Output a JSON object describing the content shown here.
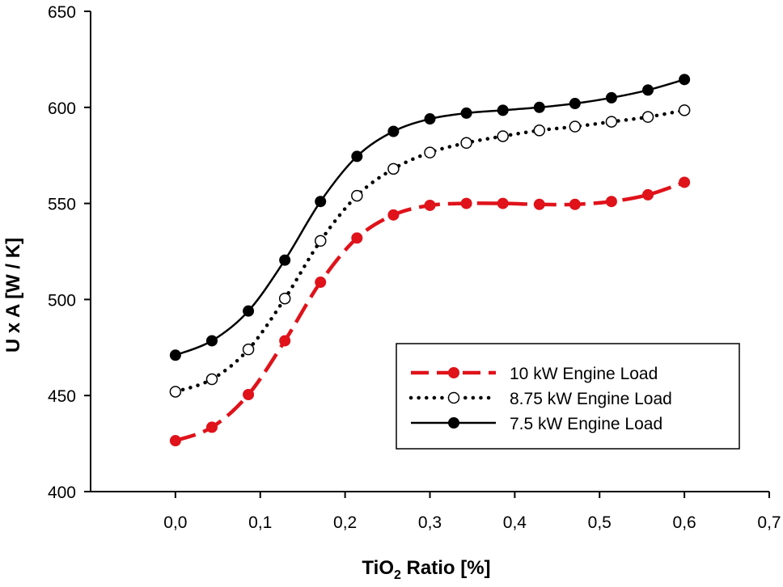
{
  "chart_data": {
    "type": "line",
    "xlabel": {
      "main": "TiO",
      "sub": "2",
      "rest": " Ratio [%]"
    },
    "ylabel": "U x A [W / K]",
    "xlim": [
      -0.1,
      0.7
    ],
    "ylim": [
      400,
      650
    ],
    "xticks": [
      {
        "value": 0.0,
        "label": "0,0"
      },
      {
        "value": 0.1,
        "label": "0,1"
      },
      {
        "value": 0.2,
        "label": "0,2"
      },
      {
        "value": 0.3,
        "label": "0,3"
      },
      {
        "value": 0.4,
        "label": "0,4"
      },
      {
        "value": 0.5,
        "label": "0,5"
      },
      {
        "value": 0.6,
        "label": "0,6"
      },
      {
        "value": 0.7,
        "label": "0,7"
      }
    ],
    "yticks": [
      {
        "value": 400,
        "label": "400"
      },
      {
        "value": 450,
        "label": "450"
      },
      {
        "value": 500,
        "label": "500"
      },
      {
        "value": 550,
        "label": "550"
      },
      {
        "value": 600,
        "label": "600"
      },
      {
        "value": 650,
        "label": "650"
      }
    ],
    "x": [
      0.0,
      0.043,
      0.086,
      0.129,
      0.171,
      0.214,
      0.257,
      0.3,
      0.343,
      0.386,
      0.429,
      0.471,
      0.514,
      0.557,
      0.6
    ],
    "series": [
      {
        "name": "10 kW Engine Load",
        "color": "#e0121a",
        "line_style": "dashed",
        "marker": "filled-circle",
        "values": [
          426.5,
          433.5,
          450.5,
          478.5,
          509,
          532,
          544,
          549,
          550,
          550,
          549.5,
          549.5,
          551,
          554.5,
          561
        ]
      },
      {
        "name": "8.75 kW Engine Load",
        "color": "#000000",
        "line_style": "dotted",
        "marker": "open-circle",
        "values": [
          452,
          458.5,
          474,
          500.5,
          530.5,
          554,
          568,
          576.5,
          581.5,
          585,
          588,
          590,
          592.5,
          595,
          598.5
        ]
      },
      {
        "name": "7.5 kW Engine Load",
        "color": "#000000",
        "line_style": "solid",
        "marker": "filled-circle",
        "values": [
          471,
          478.5,
          494,
          520.5,
          551,
          574.5,
          587.5,
          594,
          597,
          598.5,
          600,
          602,
          605,
          609,
          614.5
        ]
      }
    ],
    "legend_position": "bottom-right",
    "grid": false
  }
}
